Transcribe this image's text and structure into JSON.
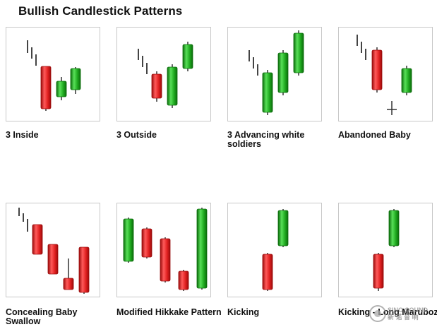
{
  "title": "Bullish Candlestick Patterns",
  "patterns": [
    {
      "label": "3 Inside",
      "candles": [
        {
          "type": "tick",
          "x": 30,
          "top": 18,
          "bottom": 36
        },
        {
          "type": "tick",
          "x": 36,
          "top": 28,
          "bottom": 44
        },
        {
          "type": "tick",
          "x": 42,
          "top": 38,
          "bottom": 54
        },
        {
          "type": "red",
          "x": 56,
          "top": 55,
          "bottom": 115,
          "wick_top": 55,
          "wick_bottom": 118
        },
        {
          "type": "green",
          "x": 78,
          "top": 76,
          "bottom": 98,
          "wick_top": 70,
          "wick_bottom": 103
        },
        {
          "type": "green",
          "x": 98,
          "top": 58,
          "bottom": 88,
          "wick_top": 56,
          "wick_bottom": 94
        }
      ]
    },
    {
      "label": "3 Outside",
      "candles": [
        {
          "type": "tick",
          "x": 30,
          "top": 30,
          "bottom": 46
        },
        {
          "type": "tick",
          "x": 36,
          "top": 40,
          "bottom": 56
        },
        {
          "type": "tick",
          "x": 42,
          "top": 50,
          "bottom": 66
        },
        {
          "type": "red",
          "x": 56,
          "top": 66,
          "bottom": 100,
          "wick_top": 62,
          "wick_bottom": 105
        },
        {
          "type": "green",
          "x": 78,
          "top": 56,
          "bottom": 110,
          "wick_top": 52,
          "wick_bottom": 114
        },
        {
          "type": "green",
          "x": 100,
          "top": 24,
          "bottom": 58,
          "wick_top": 20,
          "wick_bottom": 62
        }
      ]
    },
    {
      "label": "3 Advancing white soldiers",
      "candles": [
        {
          "type": "tick",
          "x": 30,
          "top": 32,
          "bottom": 48
        },
        {
          "type": "tick",
          "x": 36,
          "top": 42,
          "bottom": 58
        },
        {
          "type": "tick",
          "x": 42,
          "top": 52,
          "bottom": 68
        },
        {
          "type": "green",
          "x": 56,
          "top": 64,
          "bottom": 120,
          "wick_top": 60,
          "wick_bottom": 124
        },
        {
          "type": "green",
          "x": 78,
          "top": 36,
          "bottom": 92,
          "wick_top": 32,
          "wick_bottom": 96
        },
        {
          "type": "green",
          "x": 100,
          "top": 8,
          "bottom": 64,
          "wick_top": 4,
          "wick_bottom": 68
        }
      ]
    },
    {
      "label": "Abandoned Baby",
      "candles": [
        {
          "type": "tick",
          "x": 26,
          "top": 10,
          "bottom": 26
        },
        {
          "type": "tick",
          "x": 32,
          "top": 20,
          "bottom": 36
        },
        {
          "type": "tick",
          "x": 38,
          "top": 30,
          "bottom": 46
        },
        {
          "type": "red",
          "x": 54,
          "top": 32,
          "bottom": 88,
          "wick_top": 28,
          "wick_bottom": 92
        },
        {
          "type": "doji",
          "x": 75,
          "top": 104,
          "bottom": 124,
          "y": 116
        },
        {
          "type": "green",
          "x": 96,
          "top": 58,
          "bottom": 92,
          "wick_top": 54,
          "wick_bottom": 96
        }
      ]
    },
    {
      "label": "Concealing Baby Swallow",
      "candles": [
        {
          "type": "tick",
          "x": 18,
          "top": 6,
          "bottom": 18
        },
        {
          "type": "tick",
          "x": 24,
          "top": 14,
          "bottom": 26
        },
        {
          "type": "tick",
          "x": 30,
          "top": 22,
          "bottom": 40
        },
        {
          "type": "red",
          "x": 44,
          "top": 30,
          "bottom": 72,
          "wick_top": 30,
          "wick_bottom": 72
        },
        {
          "type": "red",
          "x": 66,
          "top": 58,
          "bottom": 100,
          "wick_top": 58,
          "wick_bottom": 100
        },
        {
          "type": "red",
          "x": 88,
          "top": 106,
          "bottom": 122,
          "wick_top": 78,
          "wick_bottom": 122
        },
        {
          "type": "red",
          "x": 110,
          "top": 62,
          "bottom": 126,
          "wick_top": 62,
          "wick_bottom": 128
        }
      ]
    },
    {
      "label": "Modified Hikkake Pattern",
      "candles": [
        {
          "type": "green",
          "x": 16,
          "top": 22,
          "bottom": 82,
          "wick_top": 20,
          "wick_bottom": 84
        },
        {
          "type": "red",
          "x": 42,
          "top": 36,
          "bottom": 76,
          "wick_top": 34,
          "wick_bottom": 78
        },
        {
          "type": "red",
          "x": 68,
          "top": 50,
          "bottom": 110,
          "wick_top": 48,
          "wick_bottom": 112
        },
        {
          "type": "red",
          "x": 94,
          "top": 96,
          "bottom": 122,
          "wick_top": 94,
          "wick_bottom": 124
        },
        {
          "type": "green",
          "x": 120,
          "top": 8,
          "bottom": 120,
          "wick_top": 6,
          "wick_bottom": 122
        }
      ]
    },
    {
      "label": "Kicking",
      "candles": [
        {
          "type": "red",
          "x": 56,
          "top": 72,
          "bottom": 122,
          "wick_top": 70,
          "wick_bottom": 124
        },
        {
          "type": "green",
          "x": 78,
          "top": 10,
          "bottom": 60,
          "wick_top": 8,
          "wick_bottom": 62
        }
      ]
    },
    {
      "label": "Kicking - Long Marubozu",
      "candles": [
        {
          "type": "red",
          "x": 56,
          "top": 72,
          "bottom": 120,
          "wick_top": 70,
          "wick_bottom": 124
        },
        {
          "type": "green",
          "x": 78,
          "top": 10,
          "bottom": 60,
          "wick_top": 8,
          "wick_bottom": 62
        }
      ]
    }
  ],
  "colors": {
    "red_light": "#ff5a5a",
    "red": "#e02020",
    "red_dark": "#9a0b0b",
    "green_light": "#58e058",
    "green": "#1ea81e",
    "green_dark": "#0b6b0b",
    "wick": "#333333",
    "border": "#c8c8c8"
  },
  "watermark": {
    "line1": "SINO SOUND",
    "line2": "新 诺 音 响"
  }
}
